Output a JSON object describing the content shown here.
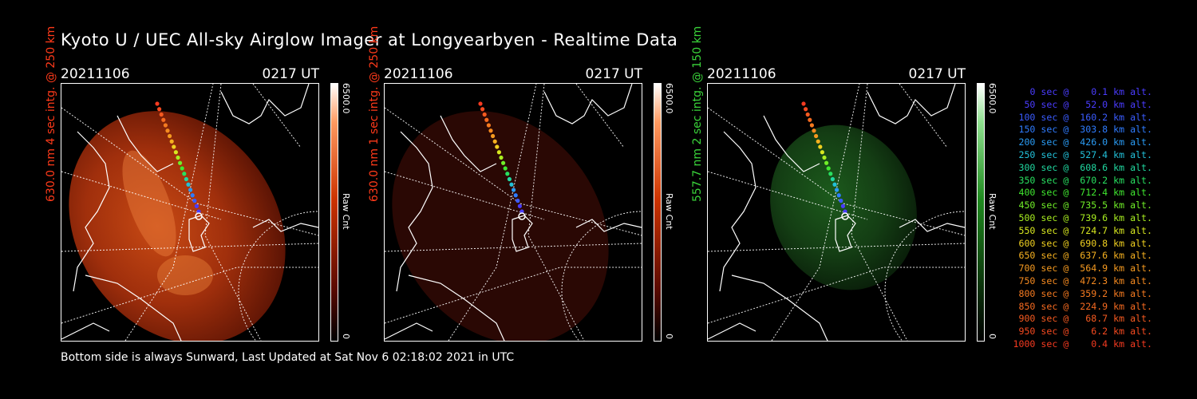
{
  "title": "Kyoto U / UEC All-sky Airglow Imager at Longyearbyen - Realtime Data",
  "footer": "Bottom side is always Sunward, Last Updated at Sat Nov  6 02:18:02 2021 in UTC",
  "panels": [
    {
      "date": "20211106",
      "time": "0217 UT",
      "ylabel": "630.0 nm 4 sec intg. @ 250 km",
      "label_color": "#ff3a1a",
      "colorbar": {
        "max": "6500.0",
        "unit": "Raw Cnt",
        "min": "0",
        "color": "#cc3300"
      }
    },
    {
      "date": "20211106",
      "time": "0217 UT",
      "ylabel": "630.0 nm 1 sec intg. @ 250 km",
      "label_color": "#ff3a1a",
      "colorbar": {
        "max": "6500.0",
        "unit": "Raw Cnt",
        "min": "0",
        "color": "#cc3300"
      }
    },
    {
      "date": "20211106",
      "time": "0217 UT",
      "ylabel": "557.7 nm 2 sec intg. @ 150 km",
      "label_color": "#3ad43a",
      "colorbar": {
        "max": "6500.0",
        "unit": "Raw Cnt",
        "min": "0",
        "color": "#1f8a1f"
      }
    }
  ],
  "legend": [
    {
      "text": "0 sec @    0.1 km alt.",
      "color": "#4a3cff"
    },
    {
      "text": "50 sec @   52.0 km alt.",
      "color": "#4a3cff"
    },
    {
      "text": "100 sec @  160.2 km alt.",
      "color": "#3a5cff"
    },
    {
      "text": "150 sec @  303.8 km alt.",
      "color": "#2f7cff"
    },
    {
      "text": "200 sec @  426.0 km alt.",
      "color": "#2a9cf5"
    },
    {
      "text": "250 sec @  527.4 km alt.",
      "color": "#22c0d8"
    },
    {
      "text": "300 sec @  608.6 km alt.",
      "color": "#20d8a0"
    },
    {
      "text": "350 sec @  670.2 km alt.",
      "color": "#28e060"
    },
    {
      "text": "400 sec @  712.4 km alt.",
      "color": "#40e830"
    },
    {
      "text": "450 sec @  735.5 km alt.",
      "color": "#70ee28"
    },
    {
      "text": "500 sec @  739.6 km alt.",
      "color": "#a8ee20"
    },
    {
      "text": "550 sec @  724.7 km alt.",
      "color": "#d8e820"
    },
    {
      "text": "600 sec @  690.8 km alt.",
      "color": "#f0d020"
    },
    {
      "text": "650 sec @  637.6 km alt.",
      "color": "#f5b020"
    },
    {
      "text": "700 sec @  564.9 km alt.",
      "color": "#f59a20"
    },
    {
      "text": "750 sec @  472.3 km alt.",
      "color": "#f58a20"
    },
    {
      "text": "800 sec @  359.2 km alt.",
      "color": "#f57a20"
    },
    {
      "text": "850 sec @  224.9 km alt.",
      "color": "#f56a20"
    },
    {
      "text": "900 sec @   68.7 km alt.",
      "color": "#f55a20"
    },
    {
      "text": "950 sec @    6.2 km alt.",
      "color": "#f54a20"
    },
    {
      "text": "1000 sec @    0.4 km alt.",
      "color": "#f53a20"
    }
  ]
}
